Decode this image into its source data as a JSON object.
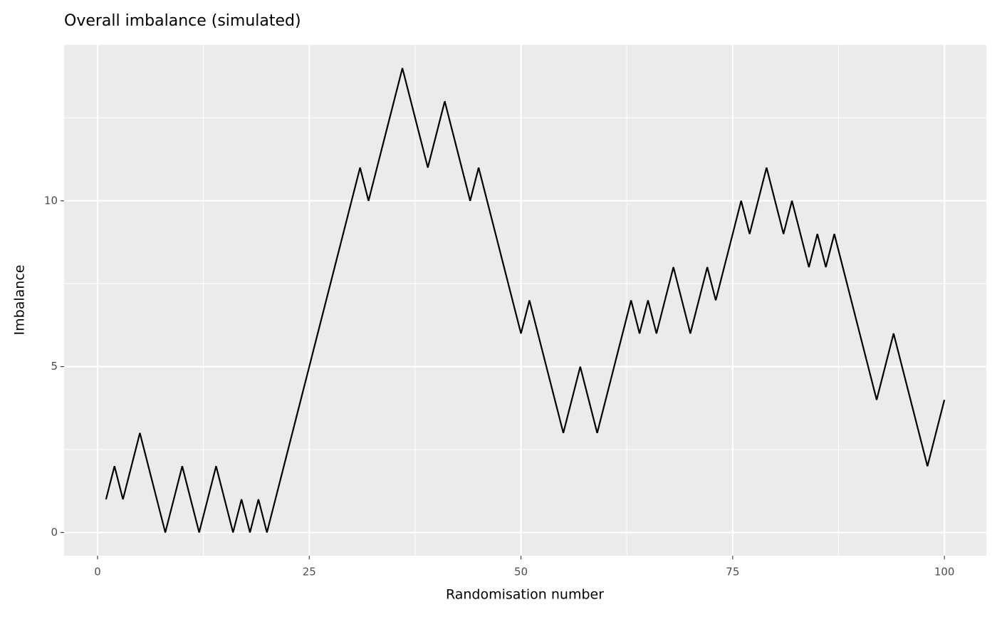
{
  "chart_data": {
    "type": "line",
    "title": "Overall imbalance (simulated)",
    "x_label": "Randomisation number",
    "y_label": "Imbalance",
    "x": [
      1,
      2,
      3,
      4,
      5,
      6,
      7,
      8,
      9,
      10,
      11,
      12,
      13,
      14,
      15,
      16,
      17,
      18,
      19,
      20,
      21,
      22,
      23,
      24,
      25,
      26,
      27,
      28,
      29,
      30,
      31,
      32,
      33,
      34,
      35,
      36,
      37,
      38,
      39,
      40,
      41,
      42,
      43,
      44,
      45,
      46,
      47,
      48,
      49,
      50,
      51,
      52,
      53,
      54,
      55,
      56,
      57,
      58,
      59,
      60,
      61,
      62,
      63,
      64,
      65,
      66,
      67,
      68,
      69,
      70,
      71,
      72,
      73,
      74,
      75,
      76,
      77,
      78,
      79,
      80,
      81,
      82,
      83,
      84,
      85,
      86,
      87,
      88,
      89,
      90,
      91,
      92,
      93,
      94,
      95,
      96,
      97,
      98,
      99,
      100
    ],
    "values": [
      1,
      2,
      1,
      2,
      3,
      2,
      1,
      0,
      1,
      2,
      1,
      0,
      1,
      2,
      1,
      0,
      1,
      0,
      1,
      0,
      1,
      2,
      3,
      4,
      5,
      6,
      7,
      8,
      9,
      10,
      11,
      10,
      11,
      12,
      13,
      14,
      13,
      12,
      11,
      12,
      13,
      12,
      11,
      10,
      11,
      10,
      9,
      8,
      7,
      6,
      7,
      6,
      5,
      4,
      3,
      4,
      5,
      4,
      3,
      4,
      5,
      6,
      7,
      6,
      7,
      6,
      7,
      8,
      7,
      6,
      7,
      8,
      7,
      8,
      9,
      10,
      9,
      10,
      11,
      10,
      9,
      10,
      9,
      8,
      9,
      8,
      9,
      8,
      7,
      6,
      5,
      4,
      5,
      6,
      5,
      4,
      3,
      2,
      3,
      4
    ],
    "color": "#000000",
    "xlim": [
      -3.95,
      104.95
    ],
    "ylim": [
      -0.7,
      14.7
    ],
    "xticks": [
      0,
      25,
      50,
      75,
      100
    ],
    "yticks": [
      0,
      5,
      10
    ],
    "x_minor_grid": [
      12.5,
      37.5,
      62.5,
      87.5
    ],
    "y_minor_grid": [
      2.5,
      7.5,
      12.5
    ],
    "grid": true
  }
}
